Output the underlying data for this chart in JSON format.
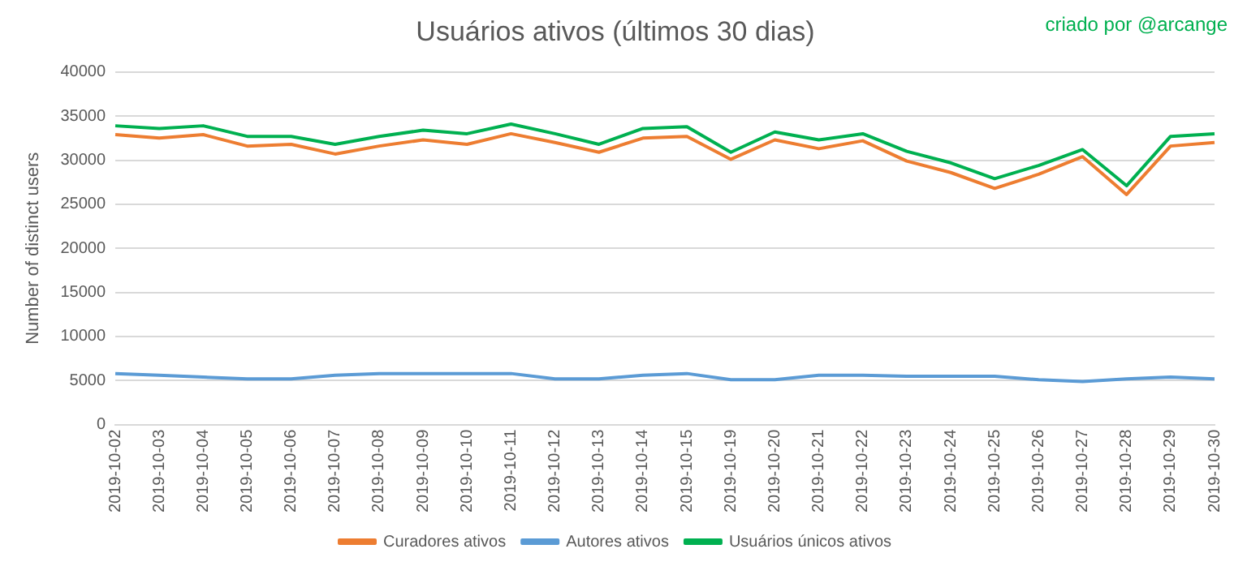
{
  "chart_data": {
    "type": "line",
    "title": "Usuários ativos (últimos 30 dias)",
    "ylabel": "Number of distinct users",
    "annotations": [
      "criado por @arcange"
    ],
    "categories": [
      "2019-10-02",
      "2019-10-03",
      "2019-10-04",
      "2019-10-05",
      "2019-10-06",
      "2019-10-07",
      "2019-10-08",
      "2019-10-09",
      "2019-10-10",
      "2019-10-11",
      "2019-10-12",
      "2019-10-13",
      "2019-10-14",
      "2019-10-15",
      "2019-10-19",
      "2019-10-20",
      "2019-10-21",
      "2019-10-22",
      "2019-10-23",
      "2019-10-24",
      "2019-10-25",
      "2019-10-26",
      "2019-10-27",
      "2019-10-28",
      "2019-10-29",
      "2019-10-30"
    ],
    "series": [
      {
        "name": "Curadores ativos",
        "color": "#ed7d31",
        "values": [
          32900,
          32500,
          32900,
          31600,
          31800,
          30700,
          31600,
          32300,
          31800,
          33000,
          32000,
          30900,
          32500,
          32700,
          30100,
          32300,
          31300,
          32200,
          29900,
          28600,
          26800,
          28400,
          30400,
          26100,
          31600,
          32000
        ]
      },
      {
        "name": "Autores ativos",
        "color": "#5b9bd5",
        "values": [
          5800,
          5600,
          5400,
          5200,
          5200,
          5600,
          5800,
          5800,
          5800,
          5800,
          5200,
          5200,
          5600,
          5800,
          5100,
          5100,
          5600,
          5600,
          5500,
          5500,
          5500,
          5100,
          4900,
          5200,
          5400,
          5200
        ]
      },
      {
        "name": "Usuários únicos ativos",
        "color": "#00b050",
        "values": [
          33900,
          33600,
          33900,
          32700,
          32700,
          31800,
          32700,
          33400,
          33000,
          34100,
          33000,
          31800,
          33600,
          33800,
          30900,
          33200,
          32300,
          33000,
          31000,
          29700,
          27900,
          29400,
          31200,
          27100,
          32700,
          33000
        ]
      }
    ],
    "ylim": [
      0,
      40000
    ],
    "yticks": [
      0,
      5000,
      10000,
      15000,
      20000,
      25000,
      30000,
      35000,
      40000
    ],
    "grid": "y",
    "legend": "bottom",
    "marker": "none",
    "line_style": "solid"
  }
}
